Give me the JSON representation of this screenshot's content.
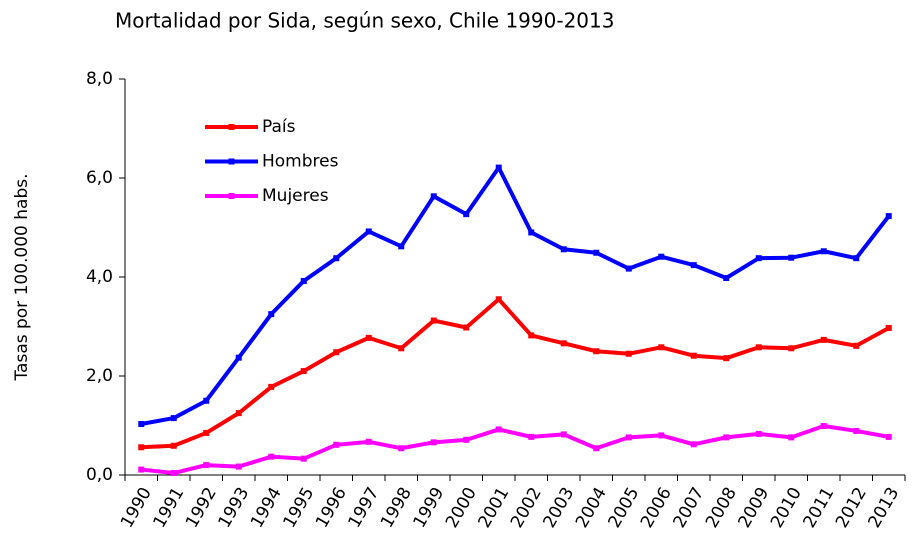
{
  "chart_data": {
    "type": "line",
    "title": "Mortalidad por Sida, según sexo, Chile 1990-2013",
    "ylabel": "Tasas por 100.000 habs.",
    "categories": [
      "1990",
      "1991",
      "1992",
      "1993",
      "1994",
      "1995",
      "1996",
      "1997",
      "1998",
      "1999",
      "2000",
      "2001",
      "2002",
      "2003",
      "2004",
      "2005",
      "2006",
      "2007",
      "2008",
      "2009",
      "2010",
      "2011",
      "2012",
      "2013"
    ],
    "series": [
      {
        "name": "País",
        "color": "#ff0000",
        "values": [
          0.56,
          0.59,
          0.85,
          1.25,
          1.78,
          2.1,
          2.48,
          2.77,
          2.56,
          3.12,
          2.98,
          3.55,
          2.82,
          2.66,
          2.5,
          2.45,
          2.58,
          2.41,
          2.36,
          2.58,
          2.56,
          2.73,
          2.61,
          2.97
        ]
      },
      {
        "name": "Hombres",
        "color": "#0000ff",
        "values": [
          1.03,
          1.15,
          1.5,
          2.37,
          3.25,
          3.92,
          4.38,
          4.92,
          4.62,
          5.63,
          5.27,
          6.21,
          4.9,
          4.56,
          4.49,
          4.17,
          4.41,
          4.24,
          3.98,
          4.38,
          4.39,
          4.52,
          4.38,
          5.23
        ]
      },
      {
        "name": "Mujeres",
        "color": "#ff00ff",
        "values": [
          0.11,
          0.04,
          0.2,
          0.17,
          0.37,
          0.33,
          0.61,
          0.67,
          0.54,
          0.66,
          0.71,
          0.92,
          0.77,
          0.82,
          0.54,
          0.76,
          0.8,
          0.62,
          0.76,
          0.83,
          0.76,
          0.99,
          0.89,
          0.77
        ]
      }
    ],
    "ylim": [
      0,
      8
    ],
    "yticks": [
      {
        "value": 0,
        "label": "0,0"
      },
      {
        "value": 2,
        "label": "2,0"
      },
      {
        "value": 4,
        "label": "4,0"
      },
      {
        "value": 6,
        "label": "6,0"
      },
      {
        "value": 8,
        "label": "8,0"
      }
    ],
    "legend": "upper left",
    "grid": false
  }
}
